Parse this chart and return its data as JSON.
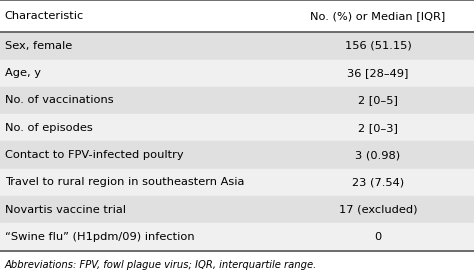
{
  "col1_header": "Characteristic",
  "col2_header": "No. (%) or Median [IQR]",
  "rows": [
    [
      "Sex, female",
      "156 (51.15)"
    ],
    [
      "Age, y",
      "36 [28–49]"
    ],
    [
      "No. of vaccinations",
      "2 [0–5]"
    ],
    [
      "No. of episodes",
      "2 [0–3]"
    ],
    [
      "Contact to FPV-infected poultry",
      "3 (0.98)"
    ],
    [
      "Travel to rural region in southeastern Asia",
      "23 (7.54)"
    ],
    [
      "Novartis vaccine trial",
      "17 (excluded)"
    ],
    [
      "“Swine flu” (H1pdm/09) infection",
      "0"
    ]
  ],
  "footnote": "Abbreviations: FPV, fowl plague virus; IQR, interquartile range.",
  "header_bg": "#ffffff",
  "row_bg_odd": "#e0e0e0",
  "row_bg_even": "#f0f0f0",
  "text_color": "#000000",
  "header_line_color": "#555555",
  "font_size": 8.2,
  "footnote_font_size": 7.2,
  "col_split": 0.595
}
